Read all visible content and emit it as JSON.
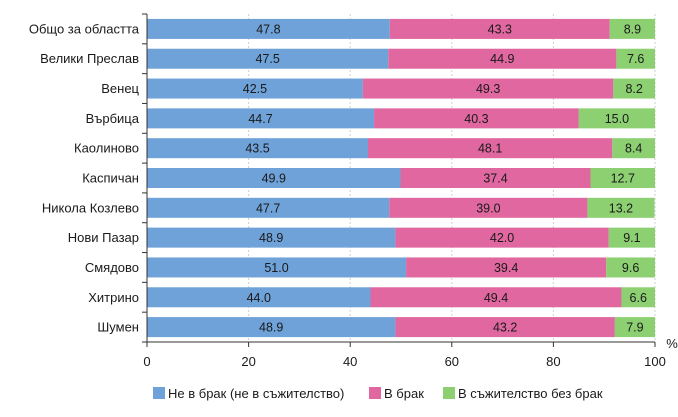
{
  "chart_data": {
    "type": "bar",
    "orientation": "horizontal",
    "stacked": true,
    "categories": [
      "Общо за областта",
      "Велики Преслав",
      "Венец",
      "Върбица",
      "Каолиново",
      "Каспичан",
      "Никола Козлево",
      "Нови Пазар",
      "Смядово",
      "Хитрино",
      "Шумен"
    ],
    "series": [
      {
        "name": "Не в брак (не в съжителство)",
        "color": "#6fa2d8",
        "values": [
          47.8,
          47.5,
          42.5,
          44.7,
          43.5,
          49.9,
          47.7,
          48.9,
          51.0,
          44.0,
          48.9
        ]
      },
      {
        "name": "В брак",
        "color": "#e0679f",
        "values": [
          43.3,
          44.9,
          49.3,
          40.3,
          48.1,
          37.4,
          39.0,
          42.0,
          39.4,
          49.4,
          43.2
        ]
      },
      {
        "name": "В съжителство без брак",
        "color": "#8dd072",
        "values": [
          8.9,
          7.6,
          8.2,
          15.0,
          8.4,
          12.7,
          13.2,
          9.1,
          9.6,
          6.6,
          7.9
        ]
      }
    ],
    "xlim": [
      0,
      100
    ],
    "xticks": [
      "0",
      "20",
      "40",
      "60",
      "80",
      "100"
    ],
    "xunit": "%",
    "grid": true,
    "legend_position": "bottom"
  }
}
